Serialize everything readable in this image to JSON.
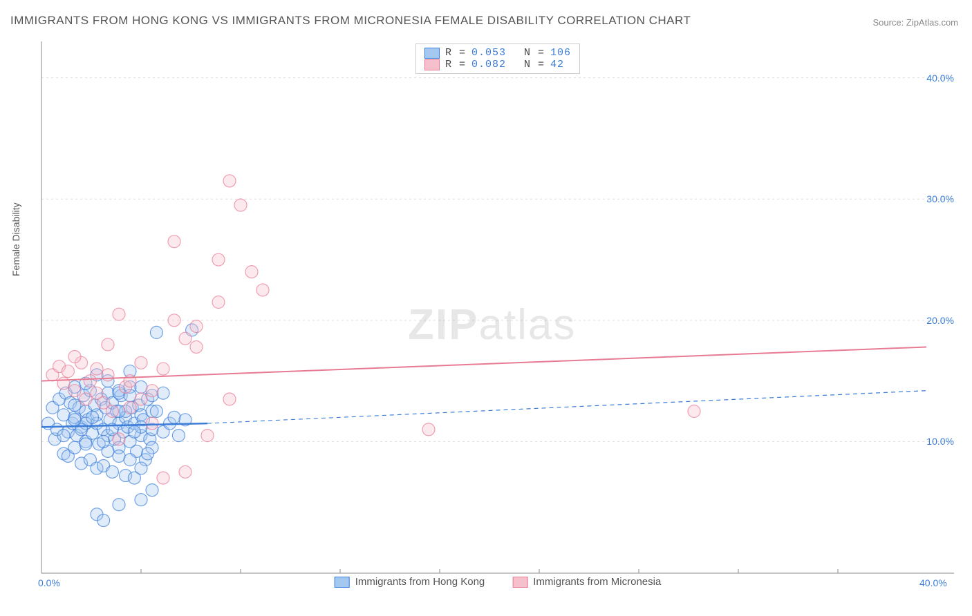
{
  "title": "IMMIGRANTS FROM HONG KONG VS IMMIGRANTS FROM MICRONESIA FEMALE DISABILITY CORRELATION CHART",
  "source": "Source: ZipAtlas.com",
  "y_axis_label": "Female Disability",
  "watermark_bold": "ZIP",
  "watermark_light": "atlas",
  "chart": {
    "type": "scatter",
    "background_color": "#ffffff",
    "grid_color": "#dddddd",
    "axis_color": "#888888",
    "xlim": [
      0,
      40
    ],
    "ylim": [
      0,
      43
    ],
    "x_ticks": [
      {
        "value": 0,
        "label": "0.0%"
      },
      {
        "value": 40,
        "label": "40.0%"
      }
    ],
    "y_ticks": [
      {
        "value": 10,
        "label": "10.0%"
      },
      {
        "value": 20,
        "label": "20.0%"
      },
      {
        "value": 30,
        "label": "30.0%"
      },
      {
        "value": 40,
        "label": "40.0%"
      }
    ],
    "y_gridlines": [
      10,
      20,
      30,
      40
    ],
    "x_minor_ticks": [
      4.5,
      9,
      13.5,
      18,
      22.5,
      27,
      31.5,
      36
    ],
    "marker_radius": 9,
    "marker_opacity": 0.35,
    "series": [
      {
        "id": "hk",
        "label": "Immigrants from Hong Kong",
        "fill_color": "#a5c8f0",
        "stroke_color": "#3b7dd8",
        "r_label": "R = ",
        "r_value": "0.053",
        "n_label": "N = ",
        "n_value": "106",
        "trend": {
          "x1": 0,
          "y1": 11.2,
          "x2": 7.5,
          "y2": 11.5,
          "dash_x1": 7.5,
          "dash_y1": 11.5,
          "dash_x2": 40,
          "dash_y2": 14.2,
          "stroke_width": 2.5
        },
        "points": [
          [
            0.3,
            11.5
          ],
          [
            0.5,
            12.8
          ],
          [
            0.6,
            10.2
          ],
          [
            0.8,
            13.5
          ],
          [
            0.7,
            11.0
          ],
          [
            1.0,
            12.2
          ],
          [
            1.1,
            14.0
          ],
          [
            1.2,
            10.8
          ],
          [
            1.3,
            13.2
          ],
          [
            1.4,
            11.5
          ],
          [
            1.5,
            12.0
          ],
          [
            1.5,
            14.5
          ],
          [
            1.6,
            10.5
          ],
          [
            1.7,
            12.8
          ],
          [
            1.8,
            11.2
          ],
          [
            1.9,
            13.8
          ],
          [
            2.0,
            10.0
          ],
          [
            2.0,
            12.5
          ],
          [
            2.1,
            11.8
          ],
          [
            2.2,
            14.2
          ],
          [
            2.3,
            10.7
          ],
          [
            2.4,
            13.0
          ],
          [
            2.5,
            11.5
          ],
          [
            2.5,
            12.2
          ],
          [
            2.6,
            9.8
          ],
          [
            2.7,
            13.5
          ],
          [
            2.8,
            11.0
          ],
          [
            2.9,
            12.8
          ],
          [
            3.0,
            10.5
          ],
          [
            3.0,
            14.0
          ],
          [
            3.1,
            11.8
          ],
          [
            3.2,
            13.2
          ],
          [
            3.3,
            10.2
          ],
          [
            3.4,
            12.5
          ],
          [
            3.5,
            11.5
          ],
          [
            3.5,
            9.5
          ],
          [
            3.6,
            13.8
          ],
          [
            3.7,
            10.8
          ],
          [
            3.8,
            12.0
          ],
          [
            3.9,
            11.2
          ],
          [
            4.0,
            14.5
          ],
          [
            4.0,
            10.0
          ],
          [
            4.1,
            12.8
          ],
          [
            4.2,
            11.5
          ],
          [
            4.3,
            9.2
          ],
          [
            4.4,
            13.0
          ],
          [
            4.5,
            10.5
          ],
          [
            4.5,
            12.2
          ],
          [
            4.6,
            11.8
          ],
          [
            4.7,
            8.5
          ],
          [
            4.8,
            13.5
          ],
          [
            4.9,
            10.2
          ],
          [
            5.0,
            12.5
          ],
          [
            1.0,
            9.0
          ],
          [
            1.2,
            8.8
          ],
          [
            1.5,
            9.5
          ],
          [
            1.8,
            8.2
          ],
          [
            2.0,
            9.8
          ],
          [
            2.2,
            8.5
          ],
          [
            2.5,
            7.8
          ],
          [
            2.8,
            8.0
          ],
          [
            3.0,
            9.2
          ],
          [
            3.2,
            7.5
          ],
          [
            3.5,
            8.8
          ],
          [
            3.8,
            7.2
          ],
          [
            4.0,
            8.5
          ],
          [
            4.2,
            7.0
          ],
          [
            4.5,
            7.8
          ],
          [
            2.5,
            4.0
          ],
          [
            3.5,
            4.8
          ],
          [
            4.5,
            5.2
          ],
          [
            5.0,
            6.0
          ],
          [
            2.0,
            14.8
          ],
          [
            2.5,
            15.5
          ],
          [
            3.0,
            15.0
          ],
          [
            3.5,
            14.2
          ],
          [
            4.0,
            15.8
          ],
          [
            4.5,
            14.5
          ],
          [
            5.0,
            13.8
          ],
          [
            5.5,
            14.0
          ],
          [
            5.0,
            11.0
          ],
          [
            5.2,
            12.5
          ],
          [
            5.5,
            10.8
          ],
          [
            5.8,
            11.5
          ],
          [
            6.0,
            12.0
          ],
          [
            6.2,
            10.5
          ],
          [
            6.5,
            11.8
          ],
          [
            6.8,
            19.2
          ],
          [
            5.2,
            19.0
          ],
          [
            2.8,
            3.5
          ],
          [
            3.5,
            14.0
          ],
          [
            5.0,
            9.5
          ],
          [
            4.0,
            13.8
          ],
          [
            4.8,
            9.0
          ],
          [
            3.2,
            11.0
          ],
          [
            2.0,
            11.5
          ],
          [
            1.5,
            13.0
          ],
          [
            2.3,
            12.0
          ],
          [
            3.8,
            12.5
          ],
          [
            4.5,
            11.2
          ],
          [
            1.8,
            11.0
          ],
          [
            2.8,
            10.0
          ],
          [
            3.5,
            12.5
          ],
          [
            4.2,
            10.8
          ],
          [
            1.0,
            10.5
          ],
          [
            1.5,
            11.8
          ]
        ]
      },
      {
        "id": "mic",
        "label": "Immigrants from Micronesia",
        "fill_color": "#f5c0cb",
        "stroke_color": "#e87b94",
        "r_label": "R = ",
        "r_value": "0.082",
        "n_label": "N = ",
        "n_value": " 42",
        "trend": {
          "x1": 0,
          "y1": 15.0,
          "x2": 40,
          "y2": 17.8,
          "stroke_width": 2
        },
        "points": [
          [
            0.5,
            15.5
          ],
          [
            0.8,
            16.2
          ],
          [
            1.0,
            14.8
          ],
          [
            1.2,
            15.8
          ],
          [
            1.5,
            14.2
          ],
          [
            1.8,
            16.5
          ],
          [
            2.0,
            13.5
          ],
          [
            2.2,
            15.0
          ],
          [
            2.5,
            14.0
          ],
          [
            2.8,
            13.2
          ],
          [
            3.0,
            15.5
          ],
          [
            3.2,
            12.5
          ],
          [
            3.5,
            10.2
          ],
          [
            3.8,
            14.5
          ],
          [
            4.0,
            12.8
          ],
          [
            4.5,
            13.5
          ],
          [
            5.0,
            14.2
          ],
          [
            5.5,
            16.0
          ],
          [
            6.0,
            20.0
          ],
          [
            6.5,
            18.5
          ],
          [
            7.0,
            17.8
          ],
          [
            7.5,
            10.5
          ],
          [
            3.5,
            20.5
          ],
          [
            6.0,
            26.5
          ],
          [
            8.0,
            25.0
          ],
          [
            8.5,
            31.5
          ],
          [
            9.0,
            29.5
          ],
          [
            9.5,
            24.0
          ],
          [
            8.0,
            21.5
          ],
          [
            7.0,
            19.5
          ],
          [
            5.5,
            7.0
          ],
          [
            6.5,
            7.5
          ],
          [
            8.5,
            13.5
          ],
          [
            10.0,
            22.5
          ],
          [
            17.5,
            11.0
          ],
          [
            29.5,
            12.5
          ],
          [
            4.0,
            15.0
          ],
          [
            2.5,
            16.0
          ],
          [
            1.5,
            17.0
          ],
          [
            3.0,
            18.0
          ],
          [
            4.5,
            16.5
          ],
          [
            5.0,
            11.5
          ]
        ]
      }
    ]
  }
}
